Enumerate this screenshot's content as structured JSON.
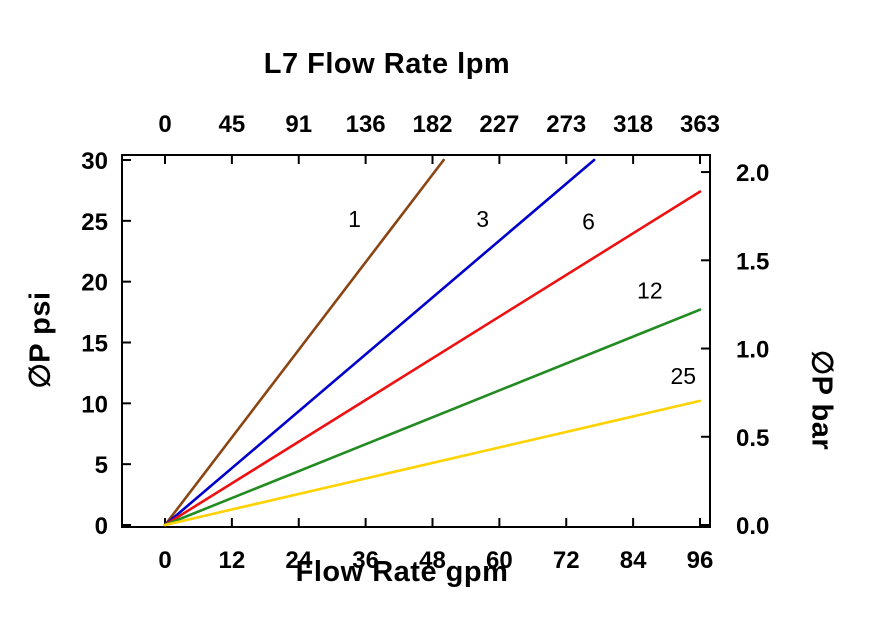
{
  "chart_data": {
    "type": "line",
    "title": "L7 Flow Rate lpm",
    "top_axis": {
      "tick_labels": [
        0,
        45,
        91,
        136,
        182,
        227,
        273,
        318,
        363
      ]
    },
    "bottom_axis": {
      "label": "Flow Rate gpm",
      "ticks": [
        0,
        12,
        24,
        36,
        48,
        60,
        72,
        84,
        96
      ],
      "range": [
        0,
        96
      ]
    },
    "left_axis": {
      "label": "∅P psi",
      "ticks": [
        0,
        5,
        10,
        15,
        20,
        25,
        30
      ],
      "range": [
        0,
        30
      ]
    },
    "right_axis": {
      "label": "∅P bar",
      "tick_labels": [
        "0.0",
        "0.5",
        "1.0",
        "1.5",
        "2.0"
      ],
      "psi_per_bar": 14.504
    },
    "grid": false,
    "background": "#FFFFFF",
    "axis_color": "#000000",
    "series": [
      {
        "name": "1",
        "color": "#8B4513",
        "points": [
          [
            0,
            0
          ],
          [
            50,
            30
          ]
        ],
        "label_pos": [
          34,
          24.5
        ]
      },
      {
        "name": "3",
        "color": "#0000CC",
        "points": [
          [
            0,
            0
          ],
          [
            77,
            30
          ]
        ],
        "label_pos": [
          57,
          24.5
        ]
      },
      {
        "name": "6",
        "color": "#EE1111",
        "points": [
          [
            0,
            0
          ],
          [
            96,
            27.4
          ]
        ],
        "label_pos": [
          76,
          24.3
        ]
      },
      {
        "name": "12",
        "color": "#228B22",
        "points": [
          [
            0,
            0
          ],
          [
            96,
            17.7
          ]
        ],
        "label_pos": [
          87,
          18.6
        ]
      },
      {
        "name": "25",
        "color": "#FFD200",
        "points": [
          [
            0,
            0
          ],
          [
            96,
            10.2
          ]
        ],
        "label_pos": [
          93,
          11.6
        ]
      }
    ]
  }
}
